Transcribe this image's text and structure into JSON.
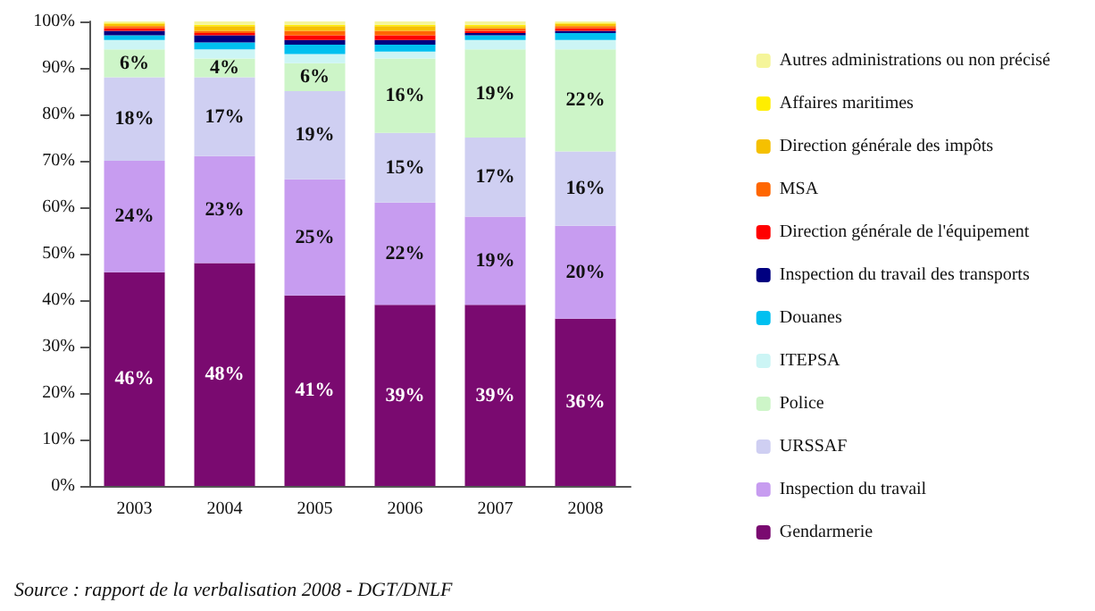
{
  "chart_data": {
    "type": "bar",
    "stacked": true,
    "categories": [
      "2003",
      "2004",
      "2005",
      "2006",
      "2007",
      "2008"
    ],
    "series": [
      {
        "name": "Gendarmerie",
        "color": "#7a0a70",
        "values": [
          46,
          48,
          41,
          39,
          39,
          36
        ],
        "value_labels": [
          "46%",
          "48%",
          "41%",
          "39%",
          "39%",
          "36%"
        ]
      },
      {
        "name": "Inspection du travail",
        "color": "#c79cf0",
        "values": [
          24,
          23,
          25,
          22,
          19,
          20
        ],
        "value_labels": [
          "24%",
          "23%",
          "25%",
          "22%",
          "19%",
          "20%"
        ]
      },
      {
        "name": "URSSAF",
        "color": "#cfcff2",
        "values": [
          18,
          17,
          19,
          15,
          17,
          16
        ],
        "value_labels": [
          "18%",
          "17%",
          "19%",
          "15%",
          "17%",
          "16%"
        ]
      },
      {
        "name": "Police",
        "color": "#cdf5c8",
        "values": [
          6,
          4,
          6,
          16,
          19,
          22
        ],
        "value_labels": [
          "6%",
          "4%",
          "6%",
          "16%",
          "19%",
          "22%"
        ]
      },
      {
        "name": "ITEPSA",
        "color": "#ccf5f5",
        "values": [
          2,
          2,
          2,
          1.5,
          2,
          2
        ]
      },
      {
        "name": "Douanes",
        "color": "#00c0f0",
        "values": [
          1,
          1.5,
          2,
          1.5,
          1,
          1.5
        ]
      },
      {
        "name": "Inspection du travail des transports",
        "color": "#000080",
        "values": [
          1,
          1.5,
          1,
          1,
          0.5,
          0.5
        ]
      },
      {
        "name": "Direction générale de l'équipement",
        "color": "#ff0000",
        "values": [
          0.5,
          0.5,
          1,
          1,
          0.5,
          0.5
        ]
      },
      {
        "name": "MSA",
        "color": "#ff6600",
        "values": [
          0.5,
          0.5,
          1,
          1,
          0.5,
          0.5
        ]
      },
      {
        "name": "Direction générale des impôts",
        "color": "#f5c000",
        "values": [
          0.5,
          1,
          1,
          1,
          0.5,
          0.5
        ]
      },
      {
        "name": "Affaires maritimes",
        "color": "#ffee00",
        "values": [
          0.2,
          0.3,
          0.3,
          0.3,
          0.3,
          0.2
        ]
      },
      {
        "name": "Autres administrations ou non précisé",
        "color": "#f5f59a",
        "values": [
          0.3,
          0.7,
          0.7,
          0.7,
          0.7,
          0.3
        ]
      }
    ],
    "ylim": [
      0,
      100
    ],
    "yticks": [
      {
        "value": 0,
        "label": "0%"
      },
      {
        "value": 10,
        "label": "10%"
      },
      {
        "value": 20,
        "label": "20%"
      },
      {
        "value": 30,
        "label": "30%"
      },
      {
        "value": 40,
        "label": "40%"
      },
      {
        "value": 50,
        "label": "50%"
      },
      {
        "value": 60,
        "label": "60%"
      },
      {
        "value": 70,
        "label": "70%"
      },
      {
        "value": 80,
        "label": "80%"
      },
      {
        "value": 90,
        "label": "90%"
      },
      {
        "value": 100,
        "label": "100%"
      }
    ],
    "grid": false,
    "legend": "right",
    "annotations": [
      "Source : rapport de la verbalisation 2008 - DGT/DNLF"
    ]
  }
}
